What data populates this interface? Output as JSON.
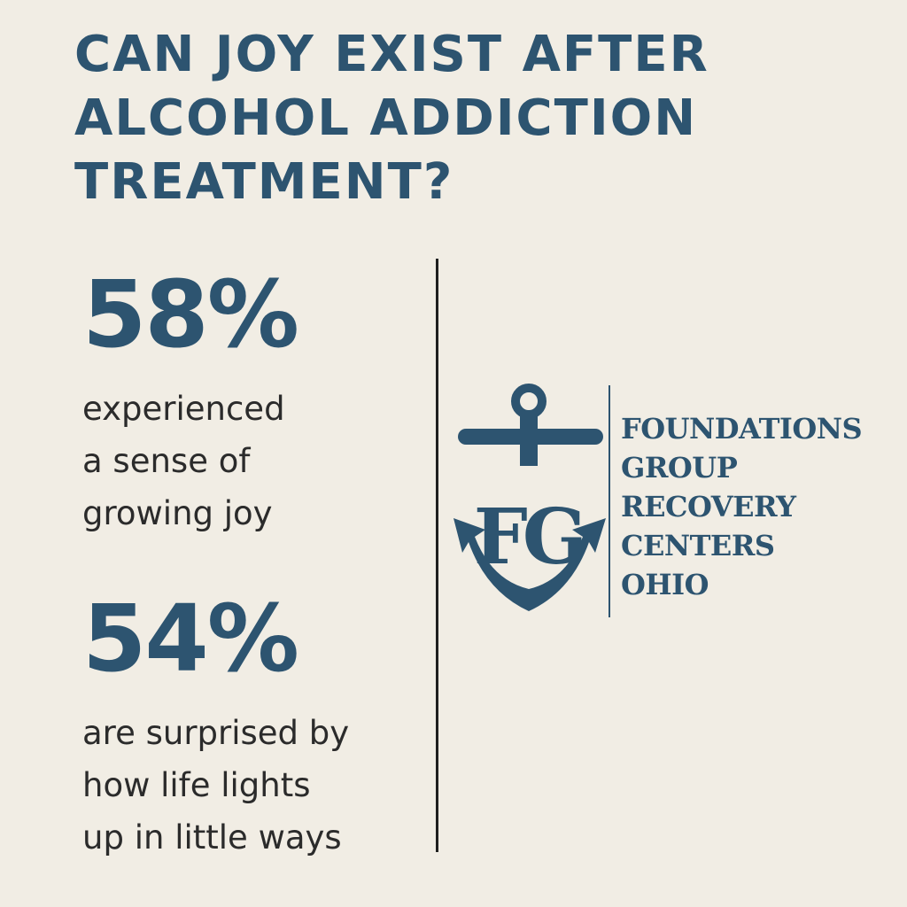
{
  "title": {
    "lines": [
      "CAN JOY EXIST AFTER",
      "ALCOHOL ADDICTION",
      "TREATMENT?"
    ]
  },
  "stats": [
    {
      "value": "58%",
      "lines": [
        "experienced",
        "a sense of",
        "growing joy"
      ]
    },
    {
      "value": "54%",
      "lines": [
        "are surprised by",
        "how life lights",
        "up in little ways"
      ]
    }
  ],
  "logo": {
    "monogram": "FG",
    "name_lines": [
      "FOUNDATIONS",
      "GROUP",
      "RECOVERY",
      "CENTERS",
      "OHIO"
    ]
  }
}
